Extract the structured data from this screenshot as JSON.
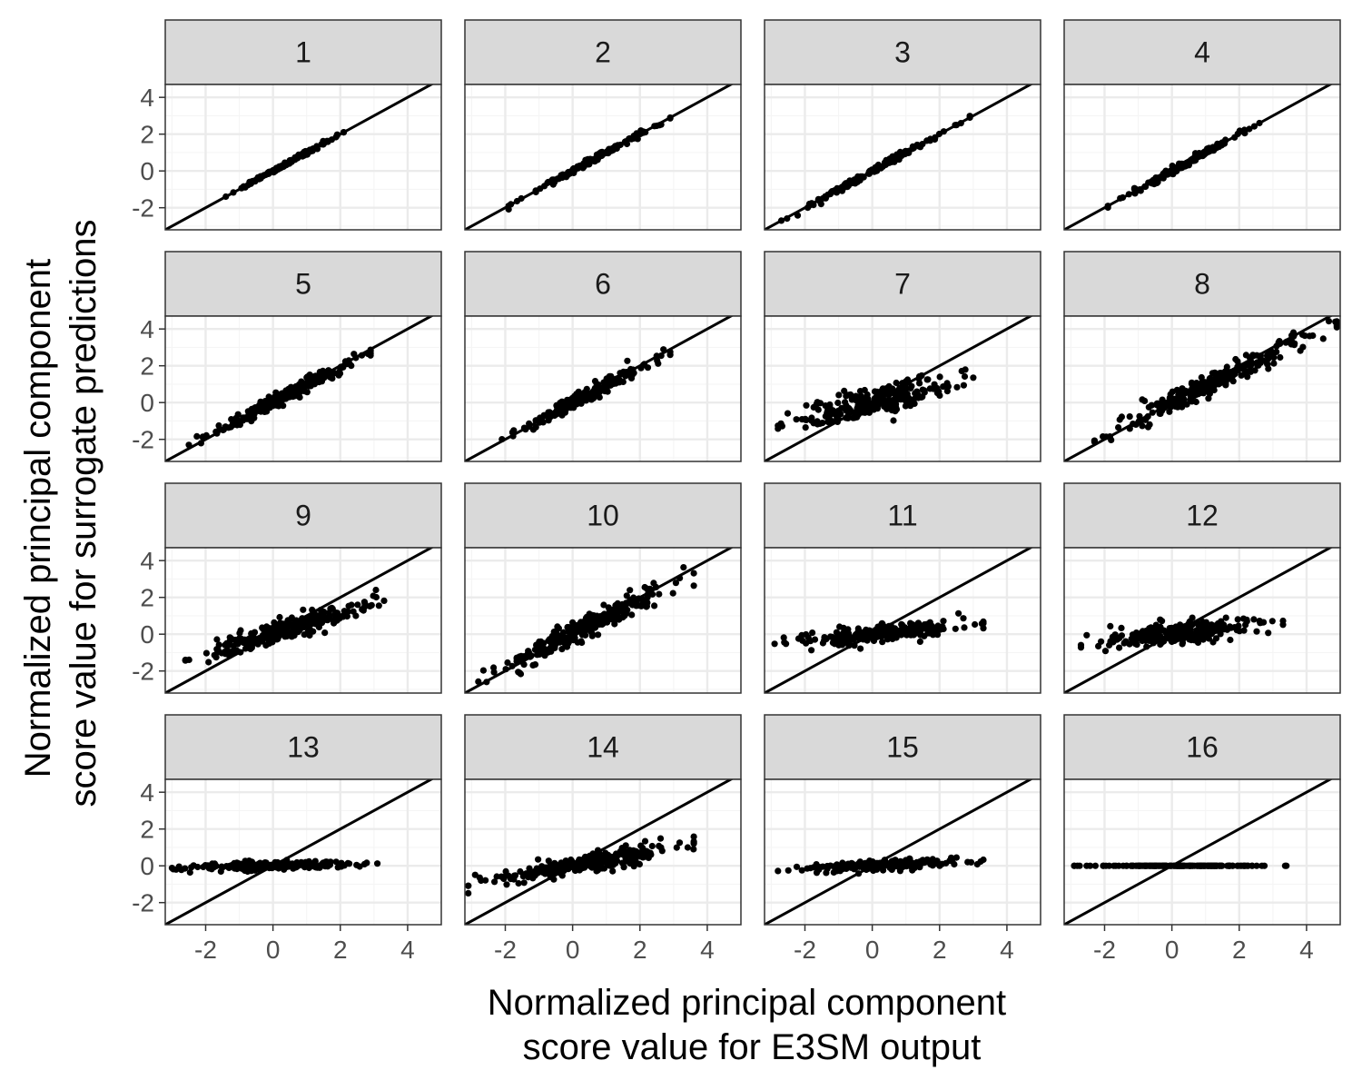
{
  "chart_data": {
    "type": "scatter",
    "facet_layout": "4 columns x 4 rows",
    "xlabel": [
      "Normalized principal component",
      "score value for E3SM output"
    ],
    "ylabel": [
      "Normalized principal component",
      "score value for surrogate predictions"
    ],
    "xlim": [
      -3.2,
      5.0
    ],
    "ylim": [
      -3.2,
      4.7
    ],
    "x_ticks": [
      -2,
      0,
      2,
      4
    ],
    "y_ticks": [
      -2,
      0,
      2,
      4
    ],
    "x_tick_labels": [
      "-2",
      "0",
      "2",
      "4"
    ],
    "y_tick_labels": [
      "-2",
      "0",
      "2",
      "4"
    ],
    "reference_line": {
      "slope": 1,
      "intercept": 0
    },
    "grid": true,
    "legend": "none",
    "colors": {
      "points": "#000000",
      "line": "#000000",
      "strip_fill": "#d9d9d9",
      "border": "#333333",
      "grid_major": "#ebebeb",
      "grid_minor": "#f5f5f5"
    },
    "panels": [
      {
        "label": "1",
        "x_range": [
          -1.4,
          2.1
        ],
        "slope": 1.0,
        "spread": 0.05,
        "n": 150
      },
      {
        "label": "2",
        "x_range": [
          -1.9,
          2.9
        ],
        "slope": 1.0,
        "spread": 0.07,
        "n": 160
      },
      {
        "label": "3",
        "x_range": [
          -2.7,
          2.9
        ],
        "slope": 1.0,
        "spread": 0.08,
        "n": 160
      },
      {
        "label": "4",
        "x_range": [
          -1.9,
          2.6
        ],
        "slope": 1.0,
        "spread": 0.09,
        "n": 160
      },
      {
        "label": "5",
        "x_range": [
          -2.5,
          2.9
        ],
        "slope": 0.92,
        "spread": 0.2,
        "n": 220
      },
      {
        "label": "6",
        "x_range": [
          -2.1,
          2.9
        ],
        "slope": 0.95,
        "spread": 0.18,
        "n": 220
      },
      {
        "label": "7",
        "x_range": [
          -2.8,
          3.0
        ],
        "slope": 0.45,
        "spread": 0.42,
        "n": 260
      },
      {
        "label": "8",
        "x_range": [
          -2.3,
          4.9
        ],
        "slope": 0.9,
        "spread": 0.3,
        "n": 250
      },
      {
        "label": "9",
        "x_range": [
          -2.6,
          3.3
        ],
        "slope": 0.55,
        "spread": 0.3,
        "n": 260
      },
      {
        "label": "10",
        "x_range": [
          -2.8,
          3.6
        ],
        "slope": 0.92,
        "spread": 0.32,
        "n": 250
      },
      {
        "label": "11",
        "x_range": [
          -2.9,
          3.3
        ],
        "slope": 0.18,
        "spread": 0.22,
        "n": 250
      },
      {
        "label": "12",
        "x_range": [
          -2.7,
          3.3
        ],
        "slope": 0.22,
        "spread": 0.3,
        "n": 250
      },
      {
        "label": "13",
        "x_range": [
          -3.0,
          3.1
        ],
        "slope": 0.04,
        "spread": 0.1,
        "n": 220
      },
      {
        "label": "14",
        "x_range": [
          -3.1,
          3.6
        ],
        "slope": 0.35,
        "spread": 0.25,
        "n": 270
      },
      {
        "label": "15",
        "x_range": [
          -2.8,
          3.3
        ],
        "slope": 0.1,
        "spread": 0.12,
        "n": 230
      },
      {
        "label": "16",
        "x_range": [
          -2.9,
          3.4
        ],
        "slope": 0.0,
        "spread": 0.0,
        "n": 180
      }
    ]
  }
}
